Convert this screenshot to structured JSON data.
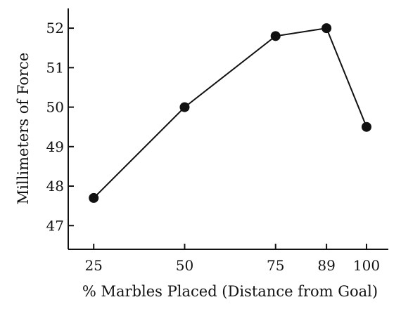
{
  "chart_data": {
    "type": "line",
    "title": "",
    "xlabel": "% Marbles Placed (Distance from Goal)",
    "ylabel": "Millimeters of Force",
    "x": [
      25,
      50,
      75,
      89,
      100
    ],
    "x_tick_labels": [
      "25",
      "50",
      "75",
      "89",
      "100"
    ],
    "values": [
      47.7,
      50.0,
      51.8,
      52.0,
      49.5
    ],
    "y_ticks": [
      47,
      48,
      49,
      50,
      51,
      52
    ],
    "ylim": [
      46.4,
      52.5
    ],
    "xlim": [
      18,
      106
    ],
    "series_color": "#111111",
    "grid": false,
    "legend": "none"
  }
}
